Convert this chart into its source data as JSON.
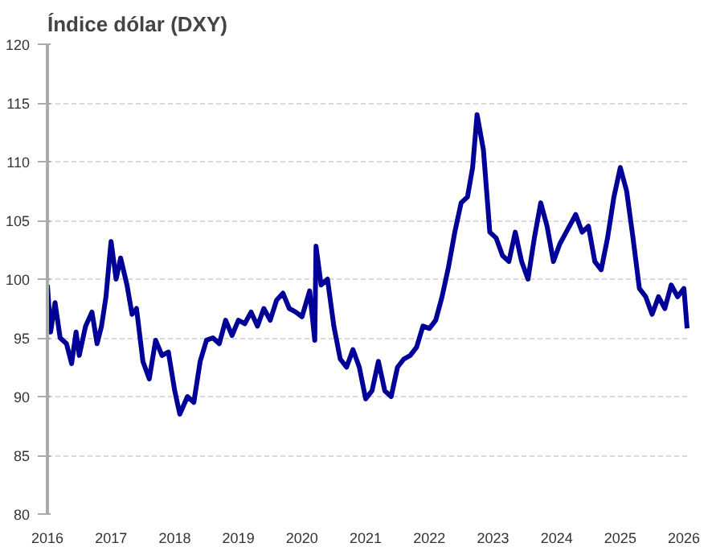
{
  "chart_data": {
    "type": "line",
    "title": "Índice dólar (DXY)",
    "x": [
      2016.0,
      2016.05,
      2016.12,
      2016.2,
      2016.3,
      2016.38,
      2016.45,
      2016.5,
      2016.6,
      2016.7,
      2016.78,
      2016.85,
      2016.92,
      2016.97,
      2017.0,
      2017.08,
      2017.15,
      2017.25,
      2017.33,
      2017.4,
      2017.5,
      2017.6,
      2017.7,
      2017.8,
      2017.9,
      2018.0,
      2018.08,
      2018.2,
      2018.3,
      2018.4,
      2018.5,
      2018.6,
      2018.7,
      2018.8,
      2018.9,
      2019.0,
      2019.1,
      2019.2,
      2019.3,
      2019.4,
      2019.5,
      2019.6,
      2019.7,
      2019.8,
      2019.9,
      2020.0,
      2020.12,
      2020.2,
      2020.22,
      2020.3,
      2020.4,
      2020.5,
      2020.6,
      2020.7,
      2020.8,
      2020.9,
      2021.0,
      2021.1,
      2021.2,
      2021.3,
      2021.4,
      2021.5,
      2021.6,
      2021.7,
      2021.8,
      2021.9,
      2022.0,
      2022.1,
      2022.2,
      2022.3,
      2022.4,
      2022.5,
      2022.6,
      2022.68,
      2022.75,
      2022.85,
      2022.95,
      2023.05,
      2023.15,
      2023.25,
      2023.35,
      2023.45,
      2023.55,
      2023.65,
      2023.75,
      2023.85,
      2023.95,
      2024.05,
      2024.15,
      2024.3,
      2024.4,
      2024.5,
      2024.6,
      2024.7,
      2024.8,
      2024.9,
      2025.0,
      2025.1,
      2025.2,
      2025.3,
      2025.4,
      2025.5,
      2025.6,
      2025.7,
      2025.8,
      2025.9,
      2026.0,
      2026.05
    ],
    "series": [
      {
        "color": "#000099",
        "values": [
          99.5,
          95.5,
          98,
          95,
          94.5,
          92.8,
          95.5,
          93.5,
          96,
          97.2,
          94.5,
          96,
          98.5,
          101.5,
          103.2,
          100,
          101.8,
          99.5,
          97,
          97.5,
          93,
          91.5,
          94.8,
          93.5,
          93.8,
          90.5,
          88.5,
          90,
          89.5,
          93,
          94.8,
          95,
          94.5,
          96.5,
          95.2,
          96.5,
          96.2,
          97.2,
          96,
          97.5,
          96.5,
          98.2,
          98.8,
          97.5,
          97.2,
          96.8,
          99,
          94.8,
          102.8,
          99.5,
          100,
          96,
          93.2,
          92.5,
          94,
          92.5,
          89.8,
          90.5,
          93,
          90.5,
          90,
          92.5,
          93.2,
          93.5,
          94.2,
          96,
          95.8,
          96.5,
          98.5,
          101,
          104,
          106.5,
          107,
          109.5,
          114,
          111,
          104,
          103.5,
          102,
          101.5,
          104,
          101.5,
          100,
          103.5,
          106.5,
          104.5,
          101.5,
          103,
          104,
          105.5,
          104,
          104.5,
          101.5,
          100.8,
          103.5,
          107,
          109.5,
          107.5,
          103.5,
          99.2,
          98.5,
          97,
          98.5,
          97.5,
          99.5,
          98.5,
          99.2,
          95.8
        ]
      }
    ],
    "xlim": [
      2016,
      2026.1
    ],
    "xticks": [
      2016,
      2017,
      2018,
      2019,
      2020,
      2021,
      2022,
      2023,
      2024,
      2025,
      2026
    ],
    "ylim": [
      80,
      120
    ],
    "yticks": [
      80,
      85,
      90,
      95,
      100,
      105,
      110,
      115,
      120
    ],
    "grid": "y",
    "line_style": "solid"
  }
}
